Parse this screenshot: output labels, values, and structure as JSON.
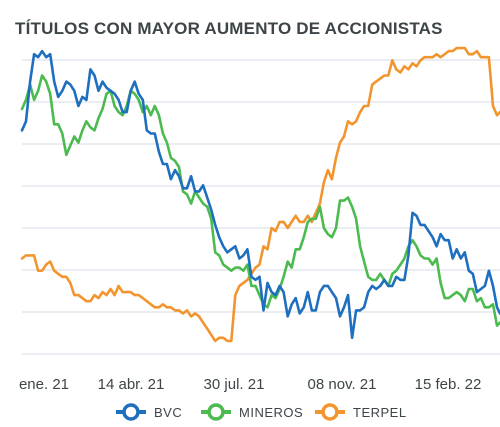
{
  "chart_data": {
    "type": "line",
    "title": "TÍTULOS CON MAYOR AUMENTO DE ACCIONISTAS",
    "xlabel": "",
    "ylabel": "",
    "x_tick_labels": [
      "ene. 21",
      "14 abr. 21",
      "30 jul. 21",
      "08 nov. 21",
      "15 feb. 22"
    ],
    "x_range": [
      0,
      475
    ],
    "y_range": [
      0,
      100
    ],
    "grid": true,
    "legend_position": "bottom",
    "series": [
      {
        "name": "BVC",
        "color": "#1f6fbf",
        "x": [
          0,
          4,
          8,
          12,
          16,
          20,
          24,
          28,
          32,
          36,
          40,
          44,
          48,
          52,
          56,
          60,
          64,
          68,
          72,
          76,
          80,
          84,
          88,
          92,
          96,
          100,
          104,
          108,
          112,
          116,
          120,
          124,
          128,
          132,
          136,
          140,
          144,
          148,
          152,
          156,
          160,
          164,
          168,
          172,
          176,
          180,
          184,
          188,
          192,
          196,
          200,
          204,
          208,
          212,
          216,
          220,
          224,
          228,
          232,
          236,
          240,
          244,
          248,
          252,
          256,
          260,
          264,
          268,
          272,
          276,
          280,
          284,
          288,
          292,
          296,
          300,
          304,
          308,
          312,
          316,
          320,
          324,
          328,
          332,
          336,
          340,
          344,
          348,
          352,
          356,
          360,
          364,
          368,
          372,
          376,
          380,
          384,
          388,
          392,
          396,
          400,
          404,
          408,
          412,
          416,
          420,
          424,
          428,
          432,
          436,
          440,
          444,
          448,
          452,
          456,
          460,
          464,
          468,
          472,
          475
        ],
        "y": [
          72,
          75,
          88,
          97,
          96,
          98,
          96,
          97,
          88,
          83,
          85,
          88,
          87,
          85,
          80,
          83,
          82,
          92,
          90,
          85,
          88,
          86,
          85,
          84,
          82,
          78,
          78,
          85,
          88,
          84,
          82,
          72,
          71,
          71,
          65,
          61,
          61,
          56,
          59,
          57,
          53,
          53,
          57,
          52,
          52,
          54,
          50,
          46,
          41,
          37,
          34,
          32,
          33,
          34,
          30,
          31,
          33,
          24,
          23,
          24,
          13,
          22,
          19,
          18,
          21,
          19,
          11,
          15,
          17,
          12,
          14,
          19,
          13,
          13,
          19,
          21,
          21,
          19,
          17,
          11,
          14,
          18,
          4,
          13,
          13,
          14,
          19,
          21,
          20,
          21,
          23,
          21,
          21,
          24,
          23,
          23,
          31,
          45,
          44,
          41,
          41,
          39,
          37,
          34,
          38,
          36,
          36,
          30,
          33,
          30,
          32,
          26,
          25,
          19,
          20,
          21,
          26,
          21,
          14,
          12
        ]
      },
      {
        "name": "MINEROS",
        "color": "#4cbb4f",
        "x": [
          0,
          4,
          8,
          12,
          16,
          20,
          24,
          28,
          32,
          36,
          40,
          44,
          48,
          52,
          56,
          60,
          64,
          68,
          72,
          76,
          80,
          84,
          88,
          92,
          96,
          100,
          104,
          108,
          112,
          116,
          120,
          124,
          128,
          132,
          136,
          140,
          144,
          148,
          152,
          156,
          160,
          164,
          168,
          172,
          176,
          180,
          184,
          188,
          192,
          196,
          200,
          204,
          208,
          212,
          216,
          220,
          224,
          228,
          232,
          236,
          240,
          244,
          248,
          252,
          256,
          260,
          264,
          268,
          272,
          276,
          280,
          284,
          288,
          292,
          296,
          300,
          304,
          308,
          312,
          316,
          320,
          324,
          328,
          332,
          336,
          340,
          344,
          348,
          352,
          356,
          360,
          364,
          368,
          372,
          376,
          380,
          384,
          388,
          392,
          396,
          400,
          404,
          408,
          412,
          416,
          420,
          424,
          428,
          432,
          436,
          440,
          444,
          448,
          452,
          456,
          460,
          464,
          468,
          472,
          475
        ],
        "y": [
          79,
          82,
          87,
          82,
          85,
          90,
          88,
          84,
          74,
          74,
          71,
          64,
          67,
          70,
          68,
          72,
          75,
          73,
          72,
          76,
          79,
          84,
          85,
          80,
          78,
          77,
          80,
          85,
          84,
          82,
          78,
          80,
          77,
          80,
          77,
          71,
          68,
          63,
          62,
          60,
          52,
          51,
          48,
          52,
          50,
          48,
          47,
          43,
          32,
          31,
          28,
          27,
          26,
          27,
          27,
          26,
          28,
          21,
          21,
          18,
          15,
          14,
          18,
          17,
          20,
          24,
          29,
          27,
          33,
          33,
          37,
          42,
          43,
          43,
          47,
          40,
          38,
          37,
          40,
          49,
          49,
          50,
          47,
          43,
          34,
          29,
          24,
          23,
          23,
          25,
          23,
          21,
          25,
          26,
          28,
          30,
          34,
          36,
          34,
          31,
          30,
          30,
          28,
          30,
          22,
          17,
          17,
          18,
          19,
          18,
          16,
          20,
          20,
          16,
          17,
          14,
          14,
          15,
          8,
          9
        ]
      },
      {
        "name": "TERPEL",
        "color": "#f2952e",
        "x": [
          0,
          4,
          8,
          12,
          16,
          20,
          24,
          28,
          32,
          36,
          40,
          44,
          48,
          52,
          56,
          60,
          64,
          68,
          72,
          76,
          80,
          84,
          88,
          92,
          96,
          100,
          104,
          108,
          112,
          116,
          120,
          124,
          128,
          132,
          136,
          140,
          144,
          148,
          152,
          156,
          160,
          164,
          168,
          172,
          176,
          180,
          184,
          188,
          192,
          196,
          200,
          204,
          208,
          212,
          216,
          220,
          224,
          228,
          232,
          236,
          240,
          244,
          248,
          252,
          256,
          260,
          264,
          268,
          272,
          276,
          280,
          284,
          288,
          292,
          296,
          300,
          304,
          308,
          312,
          316,
          320,
          324,
          328,
          332,
          336,
          340,
          344,
          348,
          352,
          356,
          360,
          364,
          368,
          372,
          376,
          380,
          384,
          388,
          392,
          396,
          400,
          404,
          408,
          412,
          416,
          420,
          424,
          428,
          432,
          436,
          440,
          444,
          448,
          452,
          456,
          460,
          464,
          468,
          472,
          475
        ],
        "y": [
          30,
          31,
          31,
          31,
          26,
          26,
          28,
          29,
          26,
          25,
          24,
          24,
          22,
          18,
          18,
          17,
          16,
          16,
          18,
          17,
          19,
          18,
          20,
          18,
          21,
          19,
          19,
          19,
          18,
          18,
          17,
          16,
          15,
          14,
          14,
          15,
          14,
          14,
          13,
          13,
          12,
          13,
          11,
          12,
          11,
          9,
          7,
          5,
          3,
          4,
          4,
          3,
          3,
          18,
          21,
          22,
          23,
          25,
          27,
          28,
          34,
          33,
          40,
          39,
          42,
          42,
          40,
          42,
          44,
          42,
          42,
          44,
          42,
          45,
          48,
          55,
          59,
          56,
          63,
          68,
          70,
          75,
          74,
          75,
          78,
          80,
          80,
          87,
          88,
          89,
          90,
          90,
          95,
          92,
          91,
          93,
          92,
          94,
          93,
          95,
          96,
          96,
          96,
          97,
          96,
          97,
          98,
          98,
          99,
          99,
          99,
          97,
          97,
          98,
          96,
          96,
          96,
          80,
          77,
          78
        ]
      }
    ]
  }
}
